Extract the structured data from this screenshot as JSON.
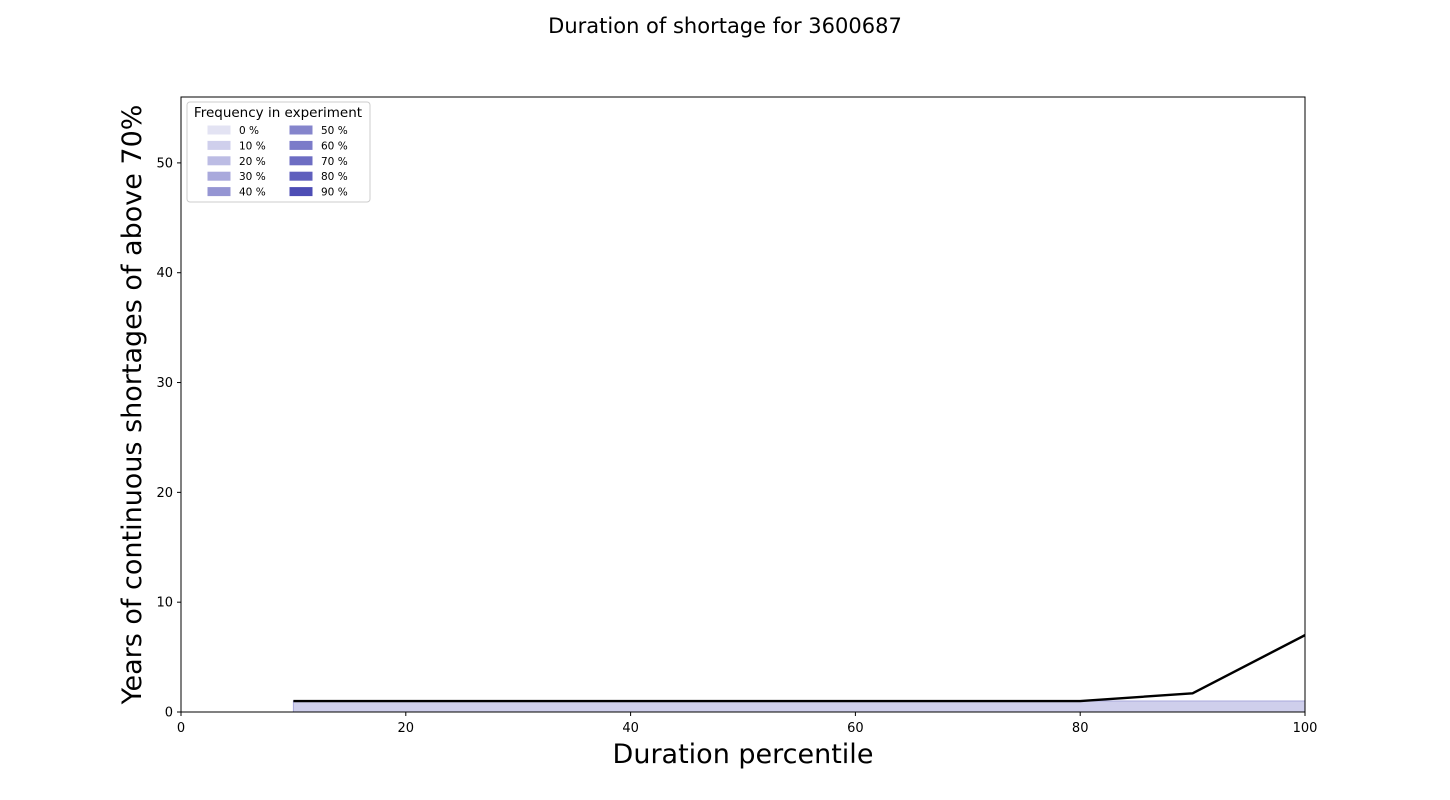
{
  "chart_data": {
    "type": "area",
    "title": "Duration of shortage for 3600687",
    "xlabel": "Duration percentile",
    "ylabel": "Years of continuous shortages of above 70%",
    "xlim": [
      0,
      100
    ],
    "ylim": [
      0,
      56
    ],
    "x_ticks": [
      0,
      20,
      40,
      60,
      80,
      100
    ],
    "y_ticks": [
      0,
      10,
      20,
      30,
      40,
      50
    ],
    "grid": false,
    "legend": {
      "title": "Frequency in experiment",
      "placement": "top-left",
      "columns": 2,
      "entries": [
        {
          "label": "0 %",
          "color": "#e3e3f3"
        },
        {
          "label": "10 %",
          "color": "#cfcfec"
        },
        {
          "label": "20 %",
          "color": "#bcbce4"
        },
        {
          "label": "30 %",
          "color": "#a9a9dc"
        },
        {
          "label": "40 %",
          "color": "#9595d3"
        },
        {
          "label": "50 %",
          "color": "#8585cc"
        },
        {
          "label": "60 %",
          "color": "#7b7bc9"
        },
        {
          "label": "70 %",
          "color": "#6d6dc3"
        },
        {
          "label": "80 %",
          "color": "#5f5fbd"
        },
        {
          "label": "90 %",
          "color": "#4d4db5"
        }
      ]
    },
    "bands": [
      {
        "x": [
          10,
          100
        ],
        "y_low": [
          0,
          0
        ],
        "y_high": [
          1,
          1
        ],
        "color": "#cfcfec",
        "edge": "#a9a9dc"
      }
    ],
    "series": [
      {
        "x": [
          10,
          20,
          30,
          40,
          50,
          60,
          70,
          80,
          90,
          100
        ],
        "values": [
          1,
          1,
          1,
          1,
          1,
          1,
          1,
          1,
          1.7,
          7
        ],
        "color": "#000000"
      }
    ]
  }
}
